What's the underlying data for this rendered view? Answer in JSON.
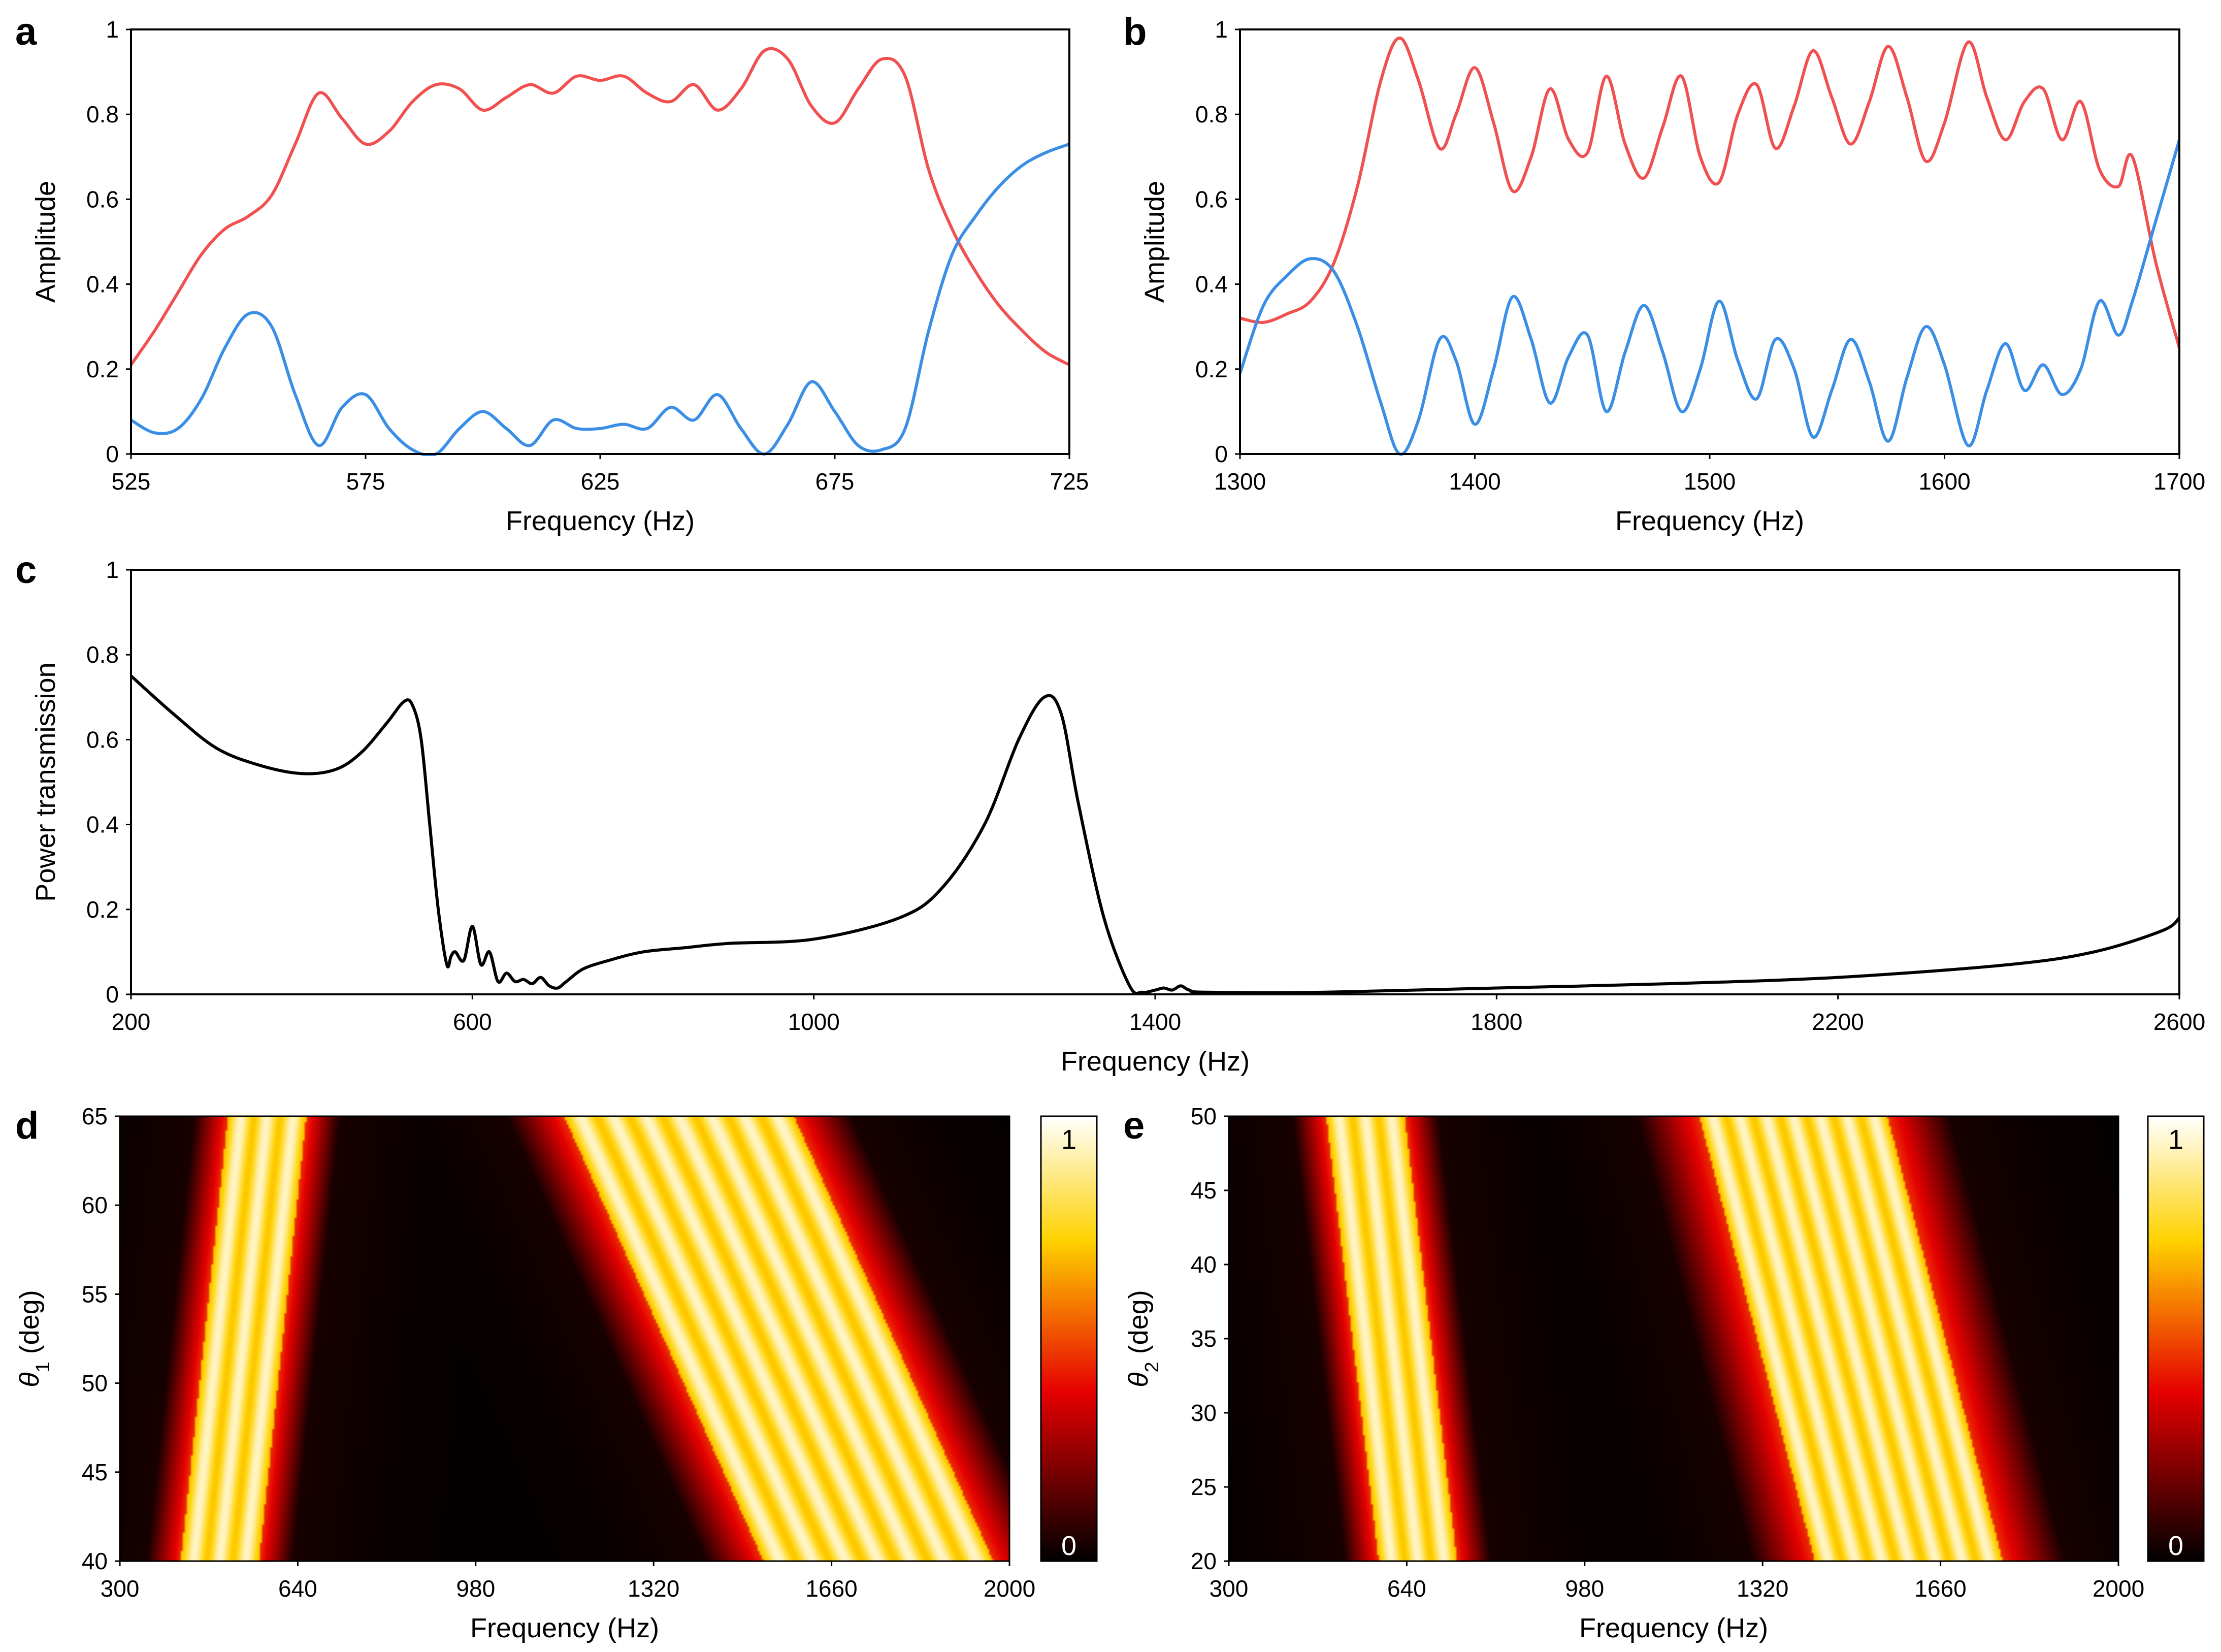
{
  "colors": {
    "series_red": "#f05050",
    "series_blue": "#3a8ee6",
    "line_black": "#000000",
    "background": "#ffffff"
  },
  "panels": {
    "a": {
      "label": "a"
    },
    "b": {
      "label": "b"
    },
    "c": {
      "label": "c"
    },
    "d": {
      "label": "d",
      "cbar_max": "1",
      "cbar_min": "0"
    },
    "e": {
      "label": "e",
      "cbar_max": "1",
      "cbar_min": "0"
    }
  },
  "chart_data": [
    {
      "id": "a",
      "type": "line",
      "xlabel": "Frequency (Hz)",
      "ylabel": "Amplitude",
      "xlim": [
        525,
        725
      ],
      "ylim": [
        0,
        1
      ],
      "xticks": [
        "525",
        "575",
        "625",
        "675",
        "725"
      ],
      "yticks": [
        "0",
        "0.2",
        "0.4",
        "0.6",
        "0.8",
        "1"
      ],
      "series": [
        {
          "name": "red",
          "color": "#f05050",
          "x": [
            525,
            530,
            535,
            540,
            545,
            550,
            555,
            560,
            565,
            570,
            575,
            580,
            585,
            590,
            595,
            600,
            605,
            610,
            615,
            620,
            625,
            630,
            635,
            640,
            645,
            650,
            655,
            660,
            665,
            670,
            675,
            680,
            685,
            690,
            695,
            700,
            705,
            710,
            715,
            720,
            725
          ],
          "y": [
            0.21,
            0.29,
            0.38,
            0.47,
            0.53,
            0.56,
            0.61,
            0.73,
            0.85,
            0.79,
            0.73,
            0.76,
            0.83,
            0.87,
            0.86,
            0.81,
            0.84,
            0.87,
            0.85,
            0.89,
            0.88,
            0.89,
            0.85,
            0.83,
            0.87,
            0.81,
            0.86,
            0.95,
            0.93,
            0.82,
            0.78,
            0.86,
            0.93,
            0.89,
            0.67,
            0.53,
            0.43,
            0.35,
            0.29,
            0.24,
            0.21
          ]
        },
        {
          "name": "blue",
          "color": "#3a8ee6",
          "x": [
            525,
            530,
            535,
            540,
            545,
            550,
            555,
            560,
            565,
            570,
            575,
            580,
            585,
            590,
            595,
            600,
            605,
            610,
            615,
            620,
            625,
            630,
            635,
            640,
            645,
            650,
            655,
            660,
            665,
            670,
            675,
            680,
            685,
            690,
            695,
            700,
            705,
            710,
            715,
            720,
            725
          ],
          "y": [
            0.08,
            0.05,
            0.06,
            0.13,
            0.25,
            0.33,
            0.3,
            0.14,
            0.02,
            0.11,
            0.14,
            0.06,
            0.01,
            0.0,
            0.06,
            0.1,
            0.06,
            0.02,
            0.08,
            0.06,
            0.06,
            0.07,
            0.06,
            0.11,
            0.08,
            0.14,
            0.06,
            0.0,
            0.07,
            0.17,
            0.1,
            0.02,
            0.01,
            0.06,
            0.29,
            0.47,
            0.56,
            0.63,
            0.68,
            0.71,
            0.73
          ]
        }
      ]
    },
    {
      "id": "b",
      "type": "line",
      "xlabel": "Frequency (Hz)",
      "ylabel": "Amplitude",
      "xlim": [
        1300,
        1700
      ],
      "ylim": [
        0,
        1
      ],
      "xticks": [
        "1300",
        "1400",
        "1500",
        "1600",
        "1700"
      ],
      "yticks": [
        "0",
        "0.2",
        "0.4",
        "0.6",
        "0.8",
        "1"
      ],
      "series": [
        {
          "name": "red",
          "color": "#f05050",
          "x": [
            1300,
            1310,
            1320,
            1330,
            1340,
            1350,
            1360,
            1368,
            1376,
            1385,
            1392,
            1400,
            1408,
            1416,
            1424,
            1432,
            1440,
            1448,
            1456,
            1464,
            1472,
            1480,
            1488,
            1496,
            1504,
            1512,
            1520,
            1528,
            1536,
            1544,
            1552,
            1560,
            1568,
            1576,
            1584,
            1592,
            1600,
            1610,
            1618,
            1626,
            1634,
            1642,
            1650,
            1658,
            1666,
            1674,
            1680,
            1690,
            1700
          ],
          "y": [
            0.32,
            0.31,
            0.33,
            0.36,
            0.45,
            0.63,
            0.88,
            0.98,
            0.88,
            0.72,
            0.8,
            0.91,
            0.78,
            0.62,
            0.7,
            0.86,
            0.74,
            0.71,
            0.89,
            0.73,
            0.65,
            0.77,
            0.89,
            0.7,
            0.64,
            0.8,
            0.87,
            0.72,
            0.82,
            0.95,
            0.84,
            0.73,
            0.83,
            0.96,
            0.84,
            0.69,
            0.78,
            0.97,
            0.84,
            0.74,
            0.83,
            0.86,
            0.74,
            0.83,
            0.67,
            0.63,
            0.7,
            0.45,
            0.25
          ]
        },
        {
          "name": "blue",
          "color": "#3a8ee6",
          "x": [
            1300,
            1310,
            1320,
            1330,
            1340,
            1350,
            1360,
            1368,
            1376,
            1385,
            1392,
            1400,
            1408,
            1416,
            1424,
            1432,
            1440,
            1448,
            1456,
            1464,
            1472,
            1480,
            1488,
            1496,
            1504,
            1512,
            1520,
            1528,
            1536,
            1544,
            1552,
            1560,
            1568,
            1576,
            1584,
            1592,
            1600,
            1610,
            1618,
            1626,
            1634,
            1642,
            1650,
            1658,
            1666,
            1674,
            1680,
            1690,
            1700
          ],
          "y": [
            0.19,
            0.35,
            0.42,
            0.46,
            0.43,
            0.3,
            0.12,
            0.0,
            0.08,
            0.27,
            0.22,
            0.07,
            0.2,
            0.37,
            0.27,
            0.12,
            0.23,
            0.28,
            0.1,
            0.24,
            0.35,
            0.24,
            0.1,
            0.2,
            0.36,
            0.22,
            0.13,
            0.27,
            0.2,
            0.04,
            0.15,
            0.27,
            0.17,
            0.03,
            0.18,
            0.3,
            0.21,
            0.02,
            0.15,
            0.26,
            0.15,
            0.21,
            0.14,
            0.2,
            0.36,
            0.28,
            0.36,
            0.55,
            0.74
          ]
        }
      ]
    },
    {
      "id": "c",
      "type": "line",
      "xlabel": "Frequency (Hz)",
      "ylabel": "Power transmission",
      "xlim": [
        200,
        2600
      ],
      "ylim": [
        0,
        1
      ],
      "xticks": [
        "200",
        "600",
        "1000",
        "1400",
        "1800",
        "2200",
        "2600"
      ],
      "yticks": [
        "0",
        "0.2",
        "0.4",
        "0.6",
        "0.8",
        "1"
      ],
      "series": [
        {
          "name": "transmission",
          "color": "#000000",
          "x": [
            200,
            250,
            300,
            350,
            400,
            440,
            470,
            500,
            520,
            530,
            540,
            550,
            560,
            570,
            575,
            580,
            590,
            600,
            610,
            620,
            630,
            640,
            650,
            660,
            670,
            680,
            690,
            700,
            710,
            730,
            760,
            800,
            850,
            900,
            1000,
            1100,
            1150,
            1200,
            1240,
            1270,
            1290,
            1310,
            1340,
            1370,
            1385,
            1400,
            1410,
            1420,
            1430,
            1440,
            1460,
            1600,
            1800,
            2000,
            2200,
            2400,
            2500,
            2580,
            2600
          ],
          "y": [
            0.75,
            0.66,
            0.58,
            0.54,
            0.52,
            0.53,
            0.57,
            0.64,
            0.69,
            0.68,
            0.6,
            0.4,
            0.2,
            0.07,
            0.09,
            0.1,
            0.08,
            0.16,
            0.07,
            0.1,
            0.03,
            0.05,
            0.03,
            0.035,
            0.025,
            0.04,
            0.02,
            0.015,
            0.03,
            0.06,
            0.08,
            0.1,
            0.11,
            0.12,
            0.13,
            0.18,
            0.25,
            0.4,
            0.6,
            0.7,
            0.66,
            0.45,
            0.18,
            0.02,
            0.005,
            0.01,
            0.015,
            0.01,
            0.02,
            0.01,
            0.005,
            0.005,
            0.015,
            0.025,
            0.04,
            0.07,
            0.1,
            0.15,
            0.18
          ]
        }
      ]
    },
    {
      "id": "d",
      "type": "heatmap",
      "xlabel": "Frequency (Hz)",
      "ylabel": "θ1 (deg)",
      "xlim": [
        300,
        2000
      ],
      "ylim": [
        40,
        65
      ],
      "xticks": [
        "300",
        "640",
        "980",
        "1320",
        "1660",
        "2000"
      ],
      "yticks": [
        "40",
        "45",
        "50",
        "55",
        "60",
        "65"
      ],
      "colorbar": {
        "min": 0,
        "max": 1,
        "colormap": "hot"
      },
      "bands": [
        {
          "name": "lower band",
          "center_at_ymax": 580,
          "center_at_ymin": 490,
          "halfwidth_core": 75,
          "halfwidth_glow": 140
        },
        {
          "name": "upper band",
          "center_at_ymax": 1370,
          "center_at_ymin": 1750,
          "halfwidth_core": 220,
          "halfwidth_glow": 330
        }
      ]
    },
    {
      "id": "e",
      "type": "heatmap",
      "xlabel": "Frequency (Hz)",
      "ylabel": "θ2 (deg)",
      "xlim": [
        300,
        2000
      ],
      "ylim": [
        20,
        50
      ],
      "xticks": [
        "300",
        "640",
        "980",
        "1320",
        "1660",
        "2000"
      ],
      "yticks": [
        "20",
        "25",
        "30",
        "35",
        "40",
        "45",
        "50"
      ],
      "colorbar": {
        "min": 0,
        "max": 1,
        "colormap": "hot"
      },
      "bands": [
        {
          "name": "lower band",
          "center_at_ymax": 560,
          "center_at_ymin": 660,
          "halfwidth_core": 75,
          "halfwidth_glow": 140
        },
        {
          "name": "upper band",
          "center_at_ymax": 1380,
          "center_at_ymin": 1600,
          "halfwidth_core": 180,
          "halfwidth_glow": 300
        }
      ]
    }
  ]
}
